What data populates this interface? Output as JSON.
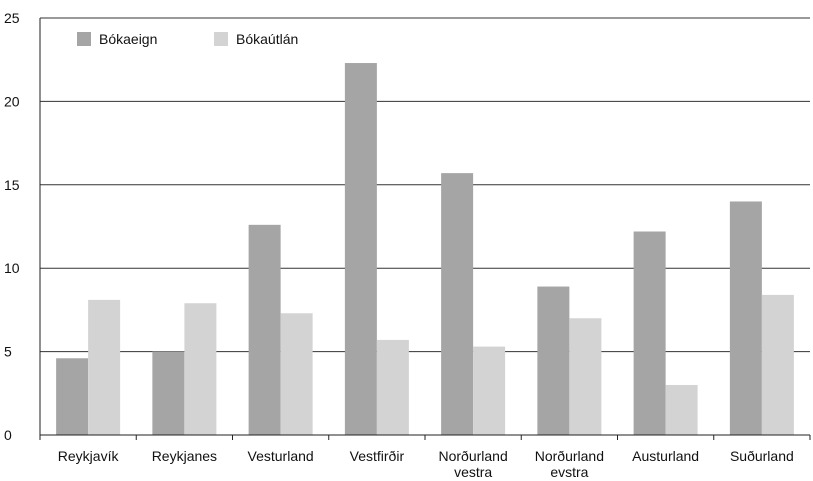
{
  "chart_data": {
    "type": "bar",
    "categories": [
      [
        "Reykjavík"
      ],
      [
        "Reykjanes"
      ],
      [
        "Vesturland"
      ],
      [
        "Vestfirðir"
      ],
      [
        "Norðurland",
        "vestra"
      ],
      [
        "Norðurland",
        "evstra"
      ],
      [
        "Austurland"
      ],
      [
        "Suðurland"
      ]
    ],
    "series": [
      {
        "name": "Bókaeign",
        "color": "#a5a5a5",
        "values": [
          4.6,
          5.0,
          12.6,
          22.3,
          15.7,
          8.9,
          12.2,
          14.0
        ]
      },
      {
        "name": "Bókaútlán",
        "color": "#d3d3d3",
        "values": [
          8.1,
          7.9,
          7.3,
          5.7,
          5.3,
          7.0,
          3.0,
          8.4
        ]
      }
    ],
    "ylim": [
      0,
      25
    ],
    "yticks": [
      0,
      5,
      10,
      15,
      20,
      25
    ],
    "grid": true,
    "legend_position": "top-left"
  }
}
